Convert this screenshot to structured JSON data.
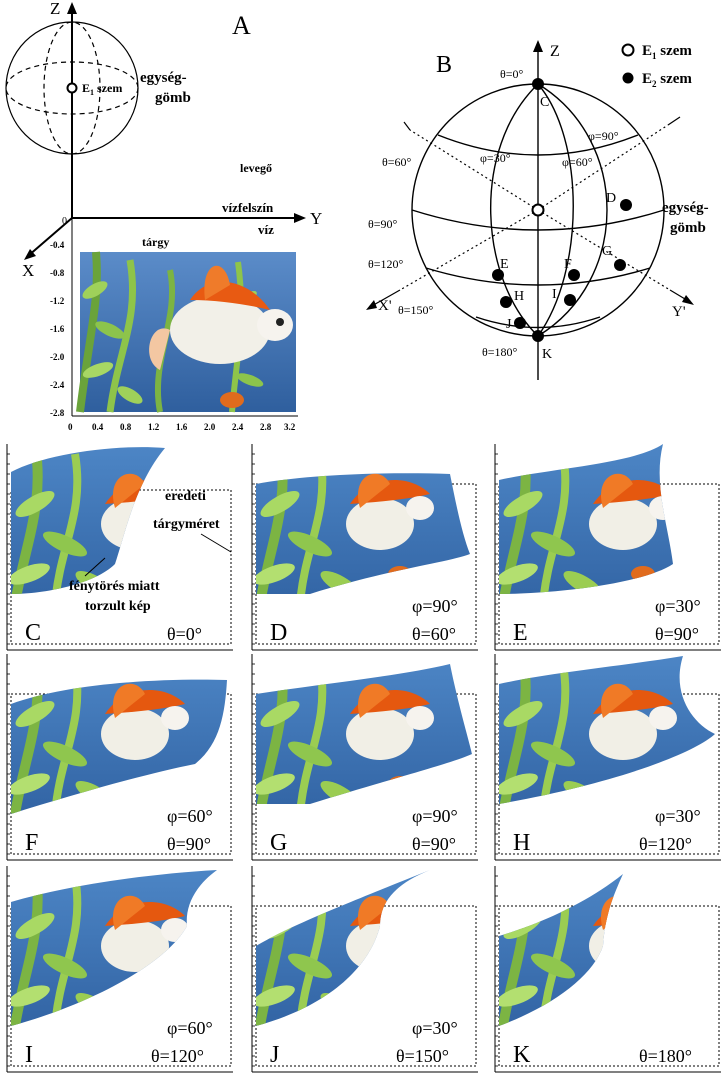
{
  "panel_a": {
    "letter": "A",
    "axis_z": "Z",
    "axis_y": "Y",
    "axis_x": "X",
    "eye_label": "E",
    "eye_sub": "1",
    "eye_word": "szem",
    "sphere_label_1": "egység-",
    "sphere_label_2": "gömb",
    "air": "levegő",
    "surface": "vízfelszín",
    "water": "víz",
    "object": "tárgy",
    "origin": "0",
    "yticks": [
      "-0.4",
      "-0.8",
      "-1.2",
      "-1.6",
      "-2.0",
      "-2.4",
      "-2.8"
    ],
    "xticks": [
      "0",
      "0.4",
      "0.8",
      "1.2",
      "1.6",
      "2.0",
      "2.4",
      "2.8",
      "3.2"
    ]
  },
  "panel_b": {
    "letter": "B",
    "axis_z": "Z",
    "axis_x": "X'",
    "axis_y": "Y'",
    "legend": [
      {
        "sym": "open",
        "label": "E",
        "sub": "1",
        "word": "szem"
      },
      {
        "sym": "filled",
        "label": "E",
        "sub": "2",
        "word": "szem"
      }
    ],
    "theta_labels": [
      "θ=0°",
      "θ=60°",
      "θ=90°",
      "θ=120°",
      "θ=150°",
      "θ=180°"
    ],
    "phi_labels": [
      "φ=30°",
      "φ=60°",
      "φ=90°"
    ],
    "points": [
      "C",
      "D",
      "E",
      "F",
      "G",
      "H",
      "I",
      "J",
      "K"
    ],
    "sphere_label_1": "egység-",
    "sphere_label_2": "gömb"
  },
  "views": [
    {
      "letter": "C",
      "line1": "",
      "line2": "θ=0°"
    },
    {
      "letter": "D",
      "line1": "φ=90°",
      "line2": "θ=60°"
    },
    {
      "letter": "E",
      "line1": "φ=30°",
      "line2": "θ=90°"
    },
    {
      "letter": "F",
      "line1": "φ=60°",
      "line2": "θ=90°"
    },
    {
      "letter": "G",
      "line1": "φ=90°",
      "line2": "θ=90°"
    },
    {
      "letter": "H",
      "line1": "φ=30°",
      "line2": "θ=120°"
    },
    {
      "letter": "I",
      "line1": "φ=60°",
      "line2": "θ=120°"
    },
    {
      "letter": "J",
      "line1": "φ=30°",
      "line2": "θ=150°"
    },
    {
      "letter": "K",
      "line1": "",
      "line2": "θ=180°"
    }
  ],
  "annotations": {
    "orig_1": "eredeti",
    "orig_2": "tárgyméret",
    "dist_1": "fénytörés miatt",
    "dist_2": "torzult kép"
  }
}
